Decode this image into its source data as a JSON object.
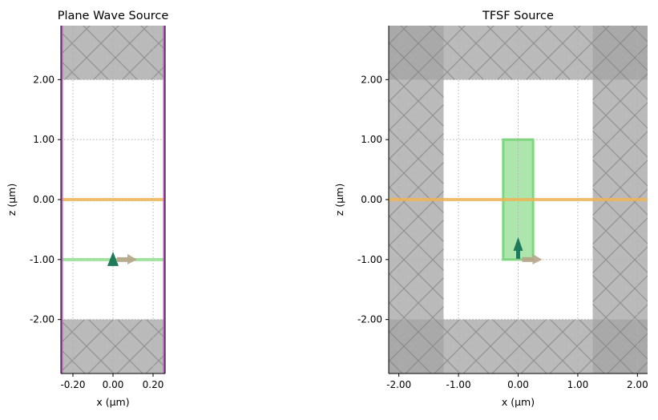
{
  "chart_data": [
    {
      "type": "diagram-plot",
      "title": "Plane Wave Source",
      "xlabel": "x (µm)",
      "ylabel": "z (µm)",
      "xlim": [
        -0.26,
        0.26
      ],
      "ylim": [
        -2.9,
        2.9
      ],
      "xticks": [
        -0.2,
        0.0,
        0.2
      ],
      "xtick_labels": [
        "-0.20",
        "0.00",
        "0.20"
      ],
      "yticks": [
        2,
        1,
        0,
        -1,
        -2
      ],
      "ytick_labels": [
        "2.00",
        "1.00",
        "0.00",
        "-1.00",
        "-2.00"
      ],
      "grid": true,
      "pml_regions": [
        [
          -0.26,
          0.26,
          2,
          2.9
        ],
        [
          -0.26,
          0.26,
          -2.9,
          -2
        ]
      ],
      "periodic_boundary_x": [
        -0.26,
        0.26
      ],
      "monitor_line_z": 0,
      "source_line_z": -1,
      "source_position": [
        0,
        -1
      ],
      "colors": {
        "pml": "#a3a3a3",
        "boundary": "#b85ebf",
        "monitor": "#f0b455",
        "source": "#98e098",
        "polarization": "#1e7a5a",
        "direction": "#b8a58a"
      }
    },
    {
      "type": "diagram-plot",
      "title": "TFSF Source",
      "xlabel": "x (µm)",
      "ylabel": "z (µm)",
      "xlim": [
        -2.17,
        2.17
      ],
      "ylim": [
        -2.9,
        2.9
      ],
      "xticks": [
        -2,
        -1,
        0,
        1,
        2
      ],
      "xtick_labels": [
        "-2.00",
        "-1.00",
        "0.00",
        "1.00",
        "2.00"
      ],
      "yticks": [
        2,
        1,
        0,
        -1,
        -2
      ],
      "ytick_labels": [
        "2.00",
        "1.00",
        "0.00",
        "-1.00",
        "-2.00"
      ],
      "grid": true,
      "pml_regions": [
        [
          -2.17,
          -1.25,
          -2.9,
          2.9
        ],
        [
          1.25,
          2.17,
          -2.9,
          2.9
        ],
        [
          -2.17,
          2.17,
          2,
          2.9
        ],
        [
          -2.17,
          2.17,
          -2.9,
          -2
        ]
      ],
      "monitor_line_z": 0,
      "tfsf_box": [
        -0.25,
        0.25,
        -1,
        1
      ],
      "source_position": [
        0,
        -1
      ],
      "colors": {
        "pml": "#a3a3a3",
        "monitor": "#f0b455",
        "source": "#98e098",
        "polarization": "#1e7a5a",
        "direction": "#b8a58a"
      }
    }
  ]
}
